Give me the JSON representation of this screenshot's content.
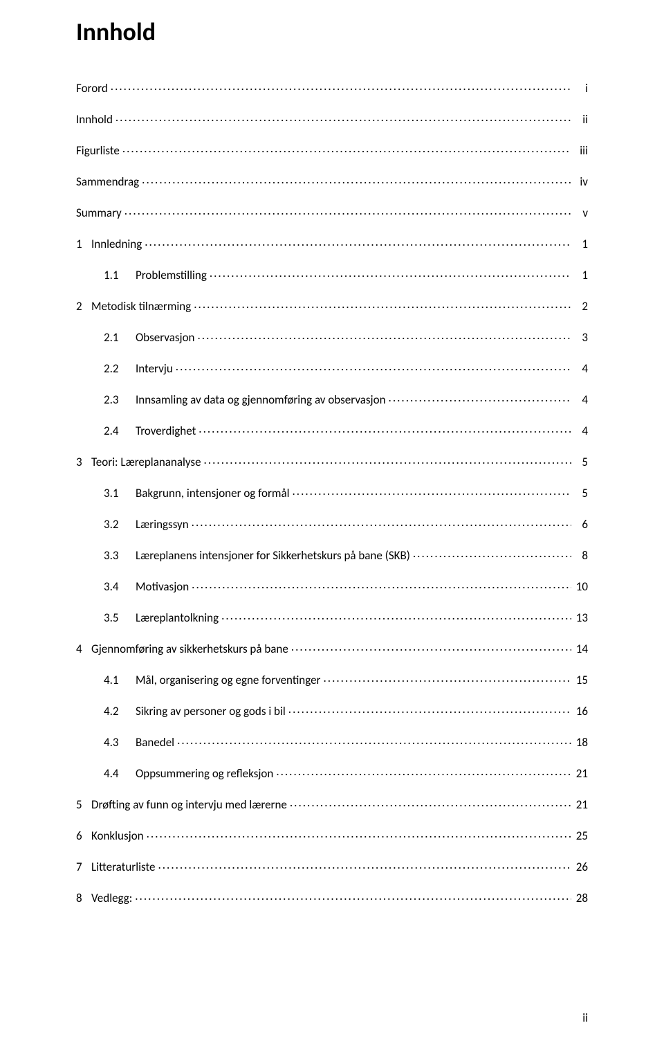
{
  "title": "Innhold",
  "page_number_roman": "ii",
  "typography": {
    "title_fontsize_pt": 28,
    "body_fontsize_pt": 12,
    "font_family": "Calibri",
    "title_weight": "bold"
  },
  "colors": {
    "text": "#000000",
    "background": "#ffffff",
    "dots": "#000000"
  },
  "toc": [
    {
      "number": "",
      "label": "Forord",
      "page": "i",
      "level": 0
    },
    {
      "number": "",
      "label": "Innhold",
      "page": "ii",
      "level": 0
    },
    {
      "number": "",
      "label": "Figurliste",
      "page": "iii",
      "level": 0
    },
    {
      "number": "",
      "label": "Sammendrag",
      "page": "iv",
      "level": 0
    },
    {
      "number": "",
      "label": "Summary",
      "page": "v",
      "level": 0
    },
    {
      "number": "1",
      "label": "Innledning",
      "page": "1",
      "level": 1
    },
    {
      "number": "1.1",
      "label": "Problemstilling",
      "page": "1",
      "level": 2
    },
    {
      "number": "2",
      "label": "Metodisk tilnærming",
      "page": "2",
      "level": 1
    },
    {
      "number": "2.1",
      "label": "Observasjon",
      "page": "3",
      "level": 2
    },
    {
      "number": "2.2",
      "label": "Intervju",
      "page": "4",
      "level": 2
    },
    {
      "number": "2.3",
      "label": "Innsamling av data og gjennomføring av observasjon",
      "page": "4",
      "level": 2
    },
    {
      "number": "2.4",
      "label": "Troverdighet",
      "page": "4",
      "level": 2
    },
    {
      "number": "3",
      "label": "Teori: Læreplananalyse",
      "page": "5",
      "level": 1
    },
    {
      "number": "3.1",
      "label": "Bakgrunn, intensjoner og formål",
      "page": "5",
      "level": 2
    },
    {
      "number": "3.2",
      "label": "Læringssyn",
      "page": "6",
      "level": 2
    },
    {
      "number": "3.3",
      "label": "Læreplanens intensjoner for Sikkerhetskurs på bane (SKB)",
      "page": "8",
      "level": 2
    },
    {
      "number": "3.4",
      "label": "Motivasjon",
      "page": "10",
      "level": 2
    },
    {
      "number": "3.5",
      "label": "Læreplantolkning",
      "page": "13",
      "level": 2
    },
    {
      "number": "4",
      "label": "Gjennomføring av sikkerhetskurs på bane",
      "page": "14",
      "level": 1
    },
    {
      "number": "4.1",
      "label": "Mål, organisering og egne forventinger",
      "page": "15",
      "level": 2
    },
    {
      "number": "4.2",
      "label": "Sikring av personer og gods i bil",
      "page": "16",
      "level": 2
    },
    {
      "number": "4.3",
      "label": "Banedel",
      "page": "18",
      "level": 2
    },
    {
      "number": "4.4",
      "label": "Oppsummering og refleksjon",
      "page": "21",
      "level": 2
    },
    {
      "number": "5",
      "label": "Drøfting av funn og intervju med lærerne",
      "page": "21",
      "level": 1
    },
    {
      "number": "6",
      "label": "Konklusjon",
      "page": "25",
      "level": 1
    },
    {
      "number": "7",
      "label": "Litteraturliste",
      "page": "26",
      "level": 1
    },
    {
      "number": "8",
      "label": "Vedlegg:",
      "page": "28",
      "level": 1
    }
  ]
}
